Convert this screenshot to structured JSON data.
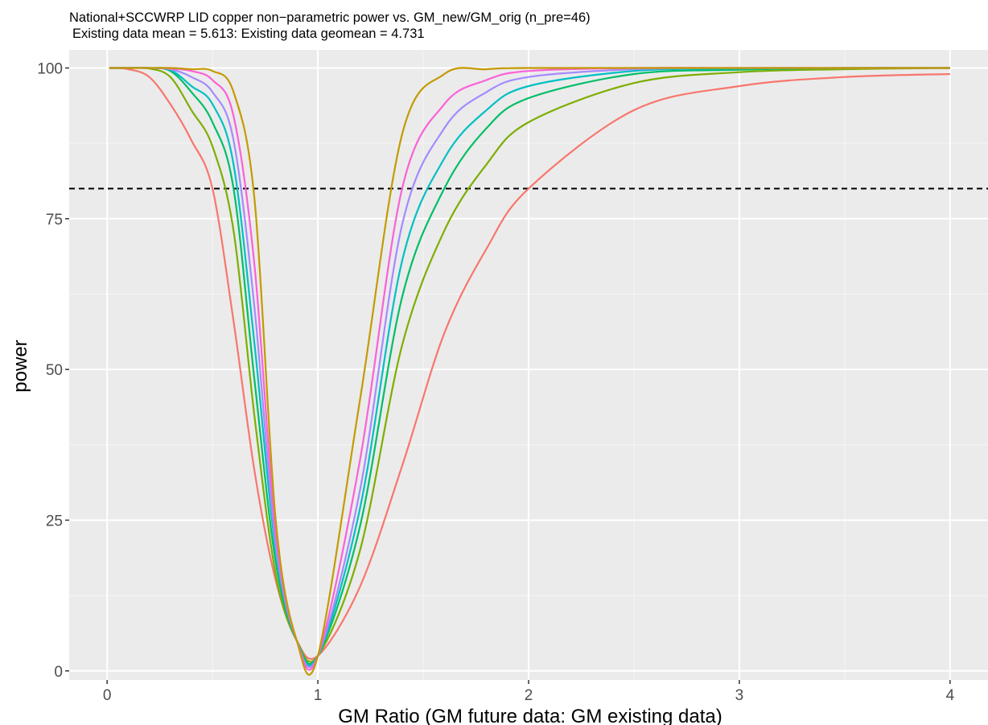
{
  "chart_data": {
    "type": "line",
    "title": "National+SCCWRP LID copper non−parametric power vs. GM_new/GM_orig (n_pre=46)",
    "subtitle": "Existing data mean = 5.613: Existing data geomean = 4.731",
    "xlabel": "GM Ratio (GM future data: GM existing data)",
    "ylabel": "power",
    "xlim": [
      -0.18,
      4.18
    ],
    "ylim": [
      -1.5,
      103
    ],
    "x_ticks": [
      0,
      1,
      2,
      3,
      4
    ],
    "x_tick_labels": [
      "0",
      "1",
      "2",
      "3",
      "4"
    ],
    "y_ticks": [
      0,
      25,
      50,
      75,
      100
    ],
    "y_tick_labels": [
      "0",
      "25",
      "50",
      "75",
      "100"
    ],
    "grid": true,
    "legend": "none",
    "reference_line": {
      "y": 80,
      "style": "dashed",
      "color": "#000000"
    },
    "x": [
      0.01,
      0.1,
      0.2,
      0.3,
      0.4,
      0.5,
      0.6,
      0.7,
      0.8,
      0.9,
      1.0,
      1.2,
      1.4,
      1.6,
      1.8,
      2.0,
      2.5,
      3.0,
      3.5,
      4.0
    ],
    "series": [
      {
        "color": "#F8766D",
        "values": [
          100,
          99.8,
          98.5,
          94,
          88,
          80,
          58,
          33,
          15,
          5,
          2.5,
          14,
          34,
          56,
          70,
          80,
          93,
          97,
          98.5,
          99
        ]
      },
      {
        "color": "#7CAE00",
        "values": [
          100,
          100,
          99.9,
          98.5,
          93,
          87,
          73,
          42,
          16,
          5,
          2.5,
          20,
          54,
          73,
          84,
          91,
          97.5,
          99.3,
          99.8,
          100
        ]
      },
      {
        "color": "#00BE67",
        "values": [
          100,
          100,
          100,
          99.5,
          96,
          91,
          80,
          48,
          18,
          5,
          2.5,
          24,
          62,
          80,
          90,
          95,
          99,
          99.7,
          100,
          100
        ]
      },
      {
        "color": "#00BFC4",
        "values": [
          100,
          100,
          100,
          99.7,
          97,
          94,
          84,
          54,
          20,
          5,
          2.5,
          27,
          68,
          85,
          93,
          97,
          99.5,
          99.9,
          100,
          100
        ]
      },
      {
        "color": "#A58AFF",
        "values": [
          100,
          100,
          100,
          99.8,
          98.5,
          96,
          88,
          60,
          21,
          5,
          2.5,
          30,
          74,
          90,
          96,
          98.5,
          99.8,
          100,
          100,
          100
        ]
      },
      {
        "color": "#FB61D7",
        "values": [
          100,
          100,
          100,
          99.9,
          99.5,
          98,
          92,
          67,
          23,
          5,
          2.5,
          35,
          80,
          94,
          98,
          99.5,
          100,
          100,
          100,
          100
        ]
      },
      {
        "color": "#C49A00",
        "values": [
          100,
          100,
          100,
          100,
          99.8,
          99.5,
          96,
          78,
          25,
          5,
          2.5,
          45,
          89,
          99,
          99.8,
          100,
          100,
          100,
          100,
          100
        ]
      }
    ]
  }
}
